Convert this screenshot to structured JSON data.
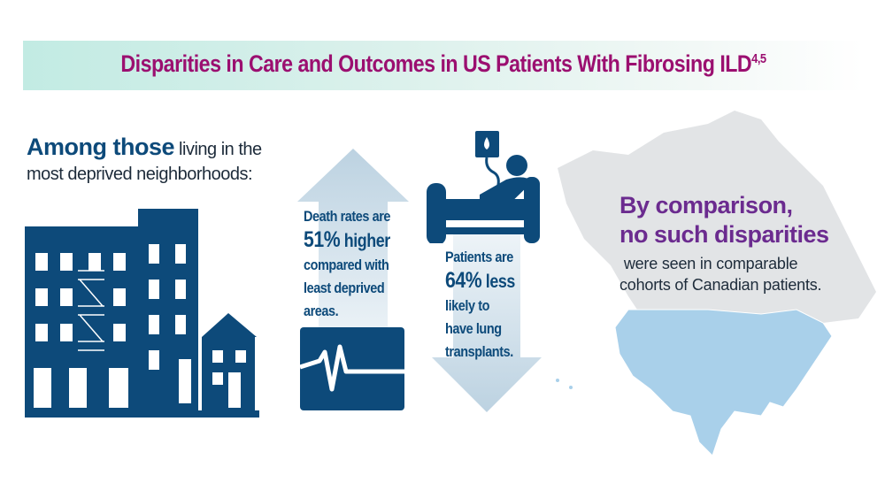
{
  "header": {
    "title": "Disparities in Care and Outcomes in US Patients With Fibrosing ILD",
    "title_superscript": "4,5"
  },
  "left": {
    "emphasis": "Among those",
    "rest_line1": " living in the",
    "line2": "most deprived neighborhoods:"
  },
  "death_stat": {
    "line1": "Death rates are",
    "percent": "51%",
    "after_percent": " higher",
    "line3": "compared with",
    "line4": "least deprived",
    "line5": "areas."
  },
  "transplant_stat": {
    "line1": "Patients are",
    "percent": "64%",
    "after_percent": " less",
    "line3": "likely to",
    "line4": "have lung",
    "line5": "transplants."
  },
  "comparison": {
    "line1": "By comparison,",
    "line2": "no such disparities",
    "line3": "were seen in comparable",
    "line4": "cohorts of Canadian patients."
  },
  "colors": {
    "title": "#9b0f70",
    "navy": "#0d4a7a",
    "arrow": "#bcd2e1",
    "purple": "#6b2b8f",
    "us_map": "#a9d0ea",
    "canada_map": "#e2e4e6"
  }
}
